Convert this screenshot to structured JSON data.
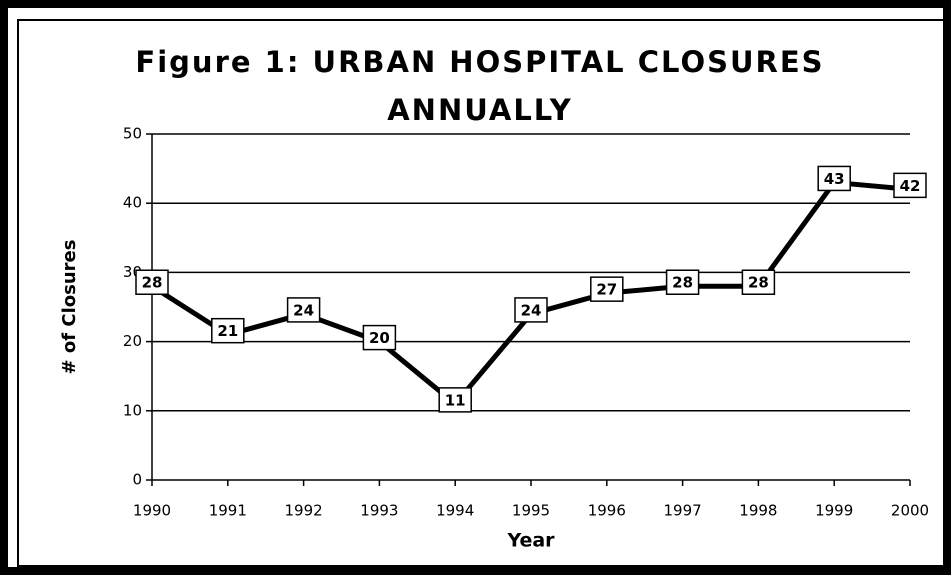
{
  "chart_data": {
    "type": "line",
    "title": "Figure 1: URBAN HOSPITAL CLOSURES ANNUALLY",
    "x_label": "Year",
    "y_label": "# of Closures",
    "x": [
      1990,
      1991,
      1992,
      1993,
      1994,
      1995,
      1996,
      1997,
      1998,
      1999,
      2000
    ],
    "series": [
      {
        "name": "Closures",
        "color": "#000000",
        "values": [
          28,
          21,
          24,
          20,
          11,
          24,
          27,
          28,
          28,
          43,
          42
        ]
      }
    ],
    "xlim": [
      1990,
      2000
    ],
    "xticks": [
      1990,
      1991,
      1992,
      1993,
      1994,
      1995,
      1996,
      1997,
      1998,
      1999,
      2000
    ],
    "ylim": [
      0,
      50
    ],
    "yticks": [
      0,
      10,
      20,
      30,
      40,
      50
    ],
    "grid": true
  }
}
